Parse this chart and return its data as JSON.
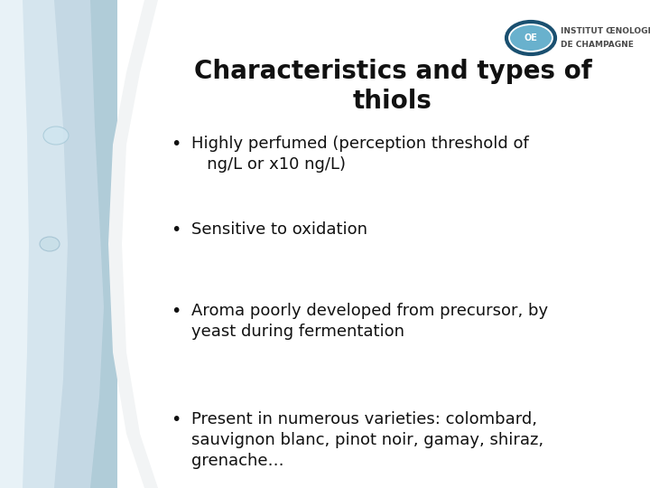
{
  "title_line1": "Characteristics and types of",
  "title_line2": "thiols",
  "title_fontsize": 20,
  "title_color": "#111111",
  "bullet_points": [
    "Highly perfumed (perception threshold of\n   ng/L or x10 ng/L)",
    "Sensitive to oxidation",
    "Aroma poorly developed from precursor, by\nyeast during fermentation",
    "Present in numerous varieties: colombard,\nsauvignon blanc, pinot noir, gamay, shiraz,\ngrenache…"
  ],
  "bullet_fontsize": 13,
  "bullet_color": "#111111",
  "background_color": "#ffffff",
  "left_photo_color1": "#aecfe0",
  "left_photo_color2": "#c8dfe8",
  "left_photo_color3": "#deeaf0",
  "curve_bg": "#e8eef2",
  "logo_text_line1": "INSTITUT ŒNOLOGIQUE",
  "logo_text_line2": "DE CHAMPAGNE",
  "logo_text_color": "#4a4a4a",
  "logo_fontsize": 6.5,
  "logo_icon_color": "#2a90b8",
  "logo_icon_dark": "#1a5070"
}
